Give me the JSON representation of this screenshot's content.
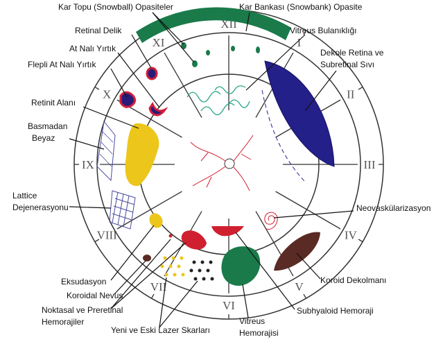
{
  "numerals": [
    "XII",
    "I",
    "II",
    "III",
    "IV",
    "V",
    "VI",
    "VII",
    "VIII",
    "IX",
    "X",
    "XI"
  ],
  "labels": [
    {
      "lines": [
        "Kar Topu (Snowball) Opasiteler"
      ]
    },
    {
      "lines": [
        "Kar Bankası (Snowbank) Opasite"
      ]
    },
    {
      "lines": [
        "Retinal Delik"
      ]
    },
    {
      "lines": [
        "Vitreus Bulanıklığı"
      ]
    },
    {
      "lines": [
        "At Nalı Yırtık"
      ]
    },
    {
      "lines": [
        "Flepli At Nalı Yırtık"
      ]
    },
    {
      "lines": [
        "Dekole Retina ve",
        "Subretinal Sıvı"
      ]
    },
    {
      "lines": [
        "Retinit Alanı"
      ]
    },
    {
      "lines": [
        "Basmadan",
        "Beyaz"
      ]
    },
    {
      "lines": [
        "Lattice",
        "Dejenerasyonu"
      ]
    },
    {
      "lines": [
        "Neovaskülarizasyon"
      ]
    },
    {
      "lines": [
        "Eksudasyon"
      ]
    },
    {
      "lines": [
        "Koroidal Nevus"
      ]
    },
    {
      "lines": [
        "Noktasal ve Preretinal",
        "Hemorajiler"
      ]
    },
    {
      "lines": [
        "Yeni ve Eski Lazer Skarları"
      ]
    },
    {
      "lines": [
        "Vitreus",
        "Hemorajisi"
      ]
    },
    {
      "lines": [
        "Subhyaloid Hemoraji"
      ]
    },
    {
      "lines": [
        "Koroid Dekolmanı"
      ]
    }
  ]
}
